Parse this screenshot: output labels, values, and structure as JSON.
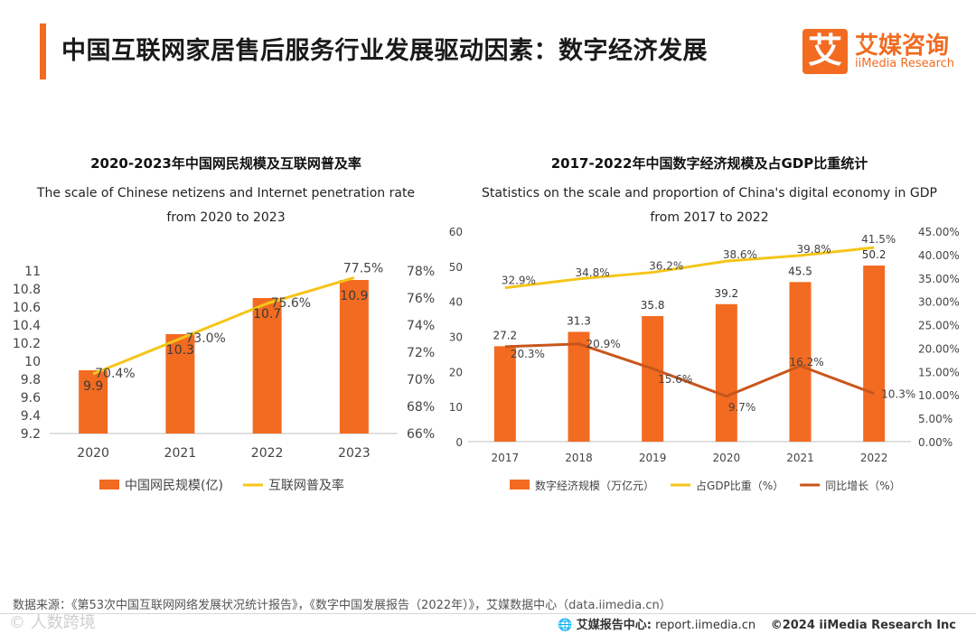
{
  "header": {
    "title": "中国互联网家居售后服务行业发展驱动因素：数字经济发展",
    "logo_mark": "艾",
    "logo_cn": "艾媒咨询",
    "logo_en": "iiMedia Research"
  },
  "chart_data": [
    {
      "type": "bar+line",
      "title_cn": "2020-2023年中国网民规模及互联网普及率",
      "title_en_1": "The scale of Chinese netizens and Internet penetration rate",
      "title_en_2": "from 2020 to 2023",
      "categories": [
        "2020",
        "2021",
        "2022",
        "2023"
      ],
      "series": [
        {
          "name": "中国网民规模(亿)",
          "kind": "bar",
          "axis": "left",
          "color": "#f26b21",
          "values": [
            9.9,
            10.3,
            10.7,
            10.9
          ],
          "labels": [
            "9.9",
            "10.3",
            "10.7",
            "10.9"
          ]
        },
        {
          "name": "互联网普及率",
          "kind": "line",
          "axis": "right",
          "color": "#f5c518",
          "values": [
            70.4,
            73.0,
            75.6,
            77.5
          ],
          "labels": [
            "70.4%",
            "73.0%",
            "75.6%",
            "77.5%"
          ]
        }
      ],
      "left_axis": {
        "min": 9.2,
        "max": 11,
        "ticks": [
          "9.2",
          "9.4",
          "9.6",
          "9.8",
          "10",
          "10.2",
          "10.4",
          "10.6",
          "10.8",
          "11"
        ]
      },
      "right_axis": {
        "min": 66,
        "max": 78,
        "ticks": [
          "66%",
          "68%",
          "70%",
          "72%",
          "74%",
          "76%",
          "78%"
        ]
      }
    },
    {
      "type": "bar+line",
      "title_cn": "2017-2022年中国数字经济规模及占GDP比重统计",
      "title_en_1": "Statistics on the scale and proportion of China's digital economy in GDP",
      "title_en_2": "from 2017 to 2022",
      "categories": [
        "2017",
        "2018",
        "2019",
        "2020",
        "2021",
        "2022"
      ],
      "series": [
        {
          "name": "数字经济规模（万亿元）",
          "kind": "bar",
          "axis": "left",
          "color": "#f26b21",
          "values": [
            27.2,
            31.3,
            35.8,
            39.2,
            45.5,
            50.2
          ],
          "labels": [
            "27.2",
            "31.3",
            "35.8",
            "39.2",
            "45.5",
            "50.2"
          ]
        },
        {
          "name": "占GDP比重（%）",
          "kind": "line",
          "axis": "right",
          "color": "#f5c518",
          "values": [
            32.9,
            34.8,
            36.2,
            38.6,
            39.8,
            41.5
          ],
          "labels": [
            "32.9%",
            "34.8%",
            "36.2%",
            "38.6%",
            "39.8%",
            "41.5%"
          ]
        },
        {
          "name": "同比增长（%）",
          "kind": "line",
          "axis": "right",
          "color": "#c8561c",
          "values": [
            20.3,
            20.9,
            15.6,
            9.7,
            16.2,
            10.3
          ],
          "labels": [
            "20.3%",
            "20.9%",
            "15.6%",
            "9.7%",
            "16.2%",
            "10.3%"
          ]
        }
      ],
      "left_axis": {
        "min": 0,
        "max": 60,
        "ticks": [
          "0",
          "10",
          "20",
          "30",
          "40",
          "50",
          "60"
        ]
      },
      "right_axis": {
        "min": 0,
        "max": 45,
        "ticks": [
          "0.00%",
          "5.00%",
          "10.00%",
          "15.00%",
          "20.00%",
          "25.00%",
          "30.00%",
          "35.00%",
          "40.00%",
          "45.00%"
        ]
      }
    }
  ],
  "footer": {
    "source": "数据来源：《第53次中国互联网网络发展状况统计报告》，《数字中国发展报告（2022年）》，艾媒数据中心（data.iimedia.cn）",
    "watermark": "©  人数跨境",
    "report_center_label": "艾媒报告中心:",
    "report_center_url": "report.iimedia.cn",
    "copyright": "©2024  iiMedia Research  Inc"
  }
}
